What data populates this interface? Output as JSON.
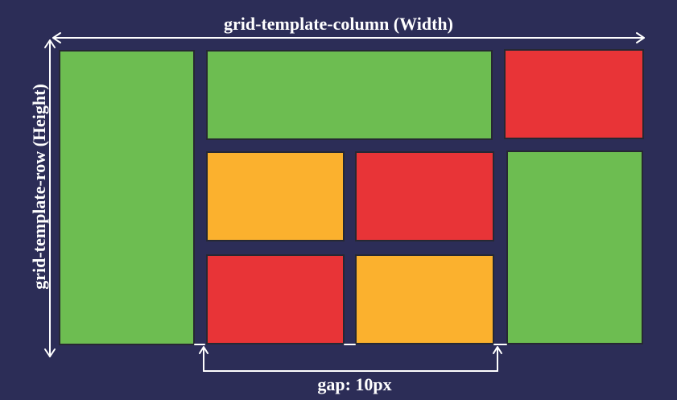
{
  "labels": {
    "width": "grid-template-column (Width)",
    "height": "grid-template-row (Height)",
    "gap": "gap: 10px"
  },
  "colors": {
    "background": "#2c2d57",
    "green": "#6dbd51",
    "red": "#e83437",
    "orange": "#fbb12e",
    "arrow": "#ffffff"
  },
  "cells": [
    {
      "color": "green"
    },
    {
      "color": "green"
    },
    {
      "color": "red"
    },
    {
      "color": "orange"
    },
    {
      "color": "red"
    },
    {
      "color": "green"
    },
    {
      "color": "red"
    },
    {
      "color": "orange"
    }
  ]
}
